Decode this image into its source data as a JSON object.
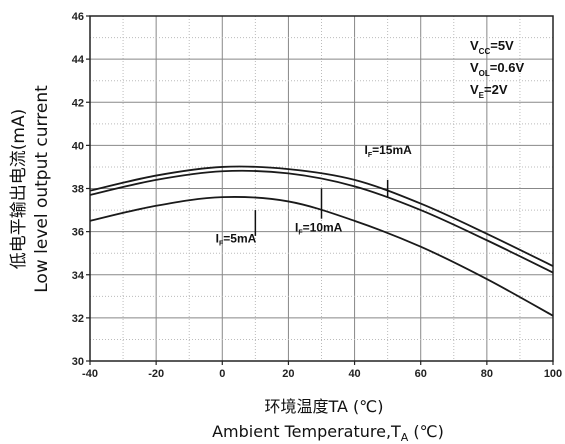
{
  "chart_data": {
    "type": "line",
    "ylabel_cn": "低电平输出电流(mA)",
    "ylabel_en": "Low level output current",
    "xlabel_cn": "环境温度TA (℃)",
    "xlabel_en_main": "Ambient Temperature,T",
    "xlabel_en_sub": "A",
    "xlabel_en_unit": " (℃)",
    "xlim": [
      -40,
      100
    ],
    "ylim": [
      30,
      46
    ],
    "xticks": [
      "-40",
      "-20",
      "0",
      "20",
      "40",
      "60",
      "80",
      "100"
    ],
    "yticks": [
      "30",
      "32",
      "34",
      "36",
      "38",
      "40",
      "42",
      "44",
      "46"
    ],
    "grid": true,
    "conditions": [
      {
        "main": "V",
        "sub": "CC",
        "rest": "=5V"
      },
      {
        "main": "V",
        "sub": "OL",
        "rest": "=0.6V"
      },
      {
        "main": "V",
        "sub": "E",
        "rest": "=2V"
      }
    ],
    "series": [
      {
        "label_main": "I",
        "label_sub": "F",
        "label_rest": "=15mA",
        "x": [
          -40,
          -20,
          0,
          20,
          40,
          60,
          80,
          100
        ],
        "values": [
          37.9,
          38.6,
          39.0,
          38.9,
          38.4,
          37.3,
          35.9,
          34.4
        ]
      },
      {
        "label_main": "I",
        "label_sub": "F",
        "label_rest": "=10mA",
        "x": [
          -40,
          -20,
          0,
          20,
          40,
          60,
          80,
          100
        ],
        "values": [
          37.7,
          38.4,
          38.8,
          38.7,
          38.1,
          37.0,
          35.6,
          34.1
        ]
      },
      {
        "label_main": "I",
        "label_sub": "F",
        "label_rest": "=5mA",
        "x": [
          -40,
          -20,
          0,
          20,
          40,
          60,
          80,
          100
        ],
        "values": [
          36.5,
          37.2,
          37.6,
          37.4,
          36.5,
          35.3,
          33.8,
          32.1
        ]
      }
    ]
  }
}
